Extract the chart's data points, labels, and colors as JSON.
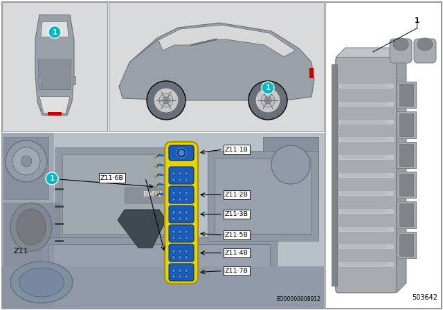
{
  "bg_color": "#ffffff",
  "teal_color": "#00b8c8",
  "yellow_color": "#e8d400",
  "blue_conn_color": "#1a5cb8",
  "blue_light": "#4488cc",
  "part_number": "503642",
  "eo_number": "EO00000008912",
  "connector_labels_right": [
    "Z11·1B",
    "Z11·7B",
    "Z11·4B",
    "Z11·5B",
    "Z11·3B",
    "Z11·2B"
  ],
  "label_z6b": "Z11·6B",
  "label_z11": "Z11",
  "gray_bg": "#c8cdd4",
  "gray_panel": "#b0b8c0",
  "gray_light": "#d8dadc",
  "gray_med": "#9aa0a8",
  "gray_dark": "#6a7078",
  "gray_comp": "#a8acb0",
  "gray_comp_light": "#c0c4c8",
  "gray_comp_dark": "#808488"
}
